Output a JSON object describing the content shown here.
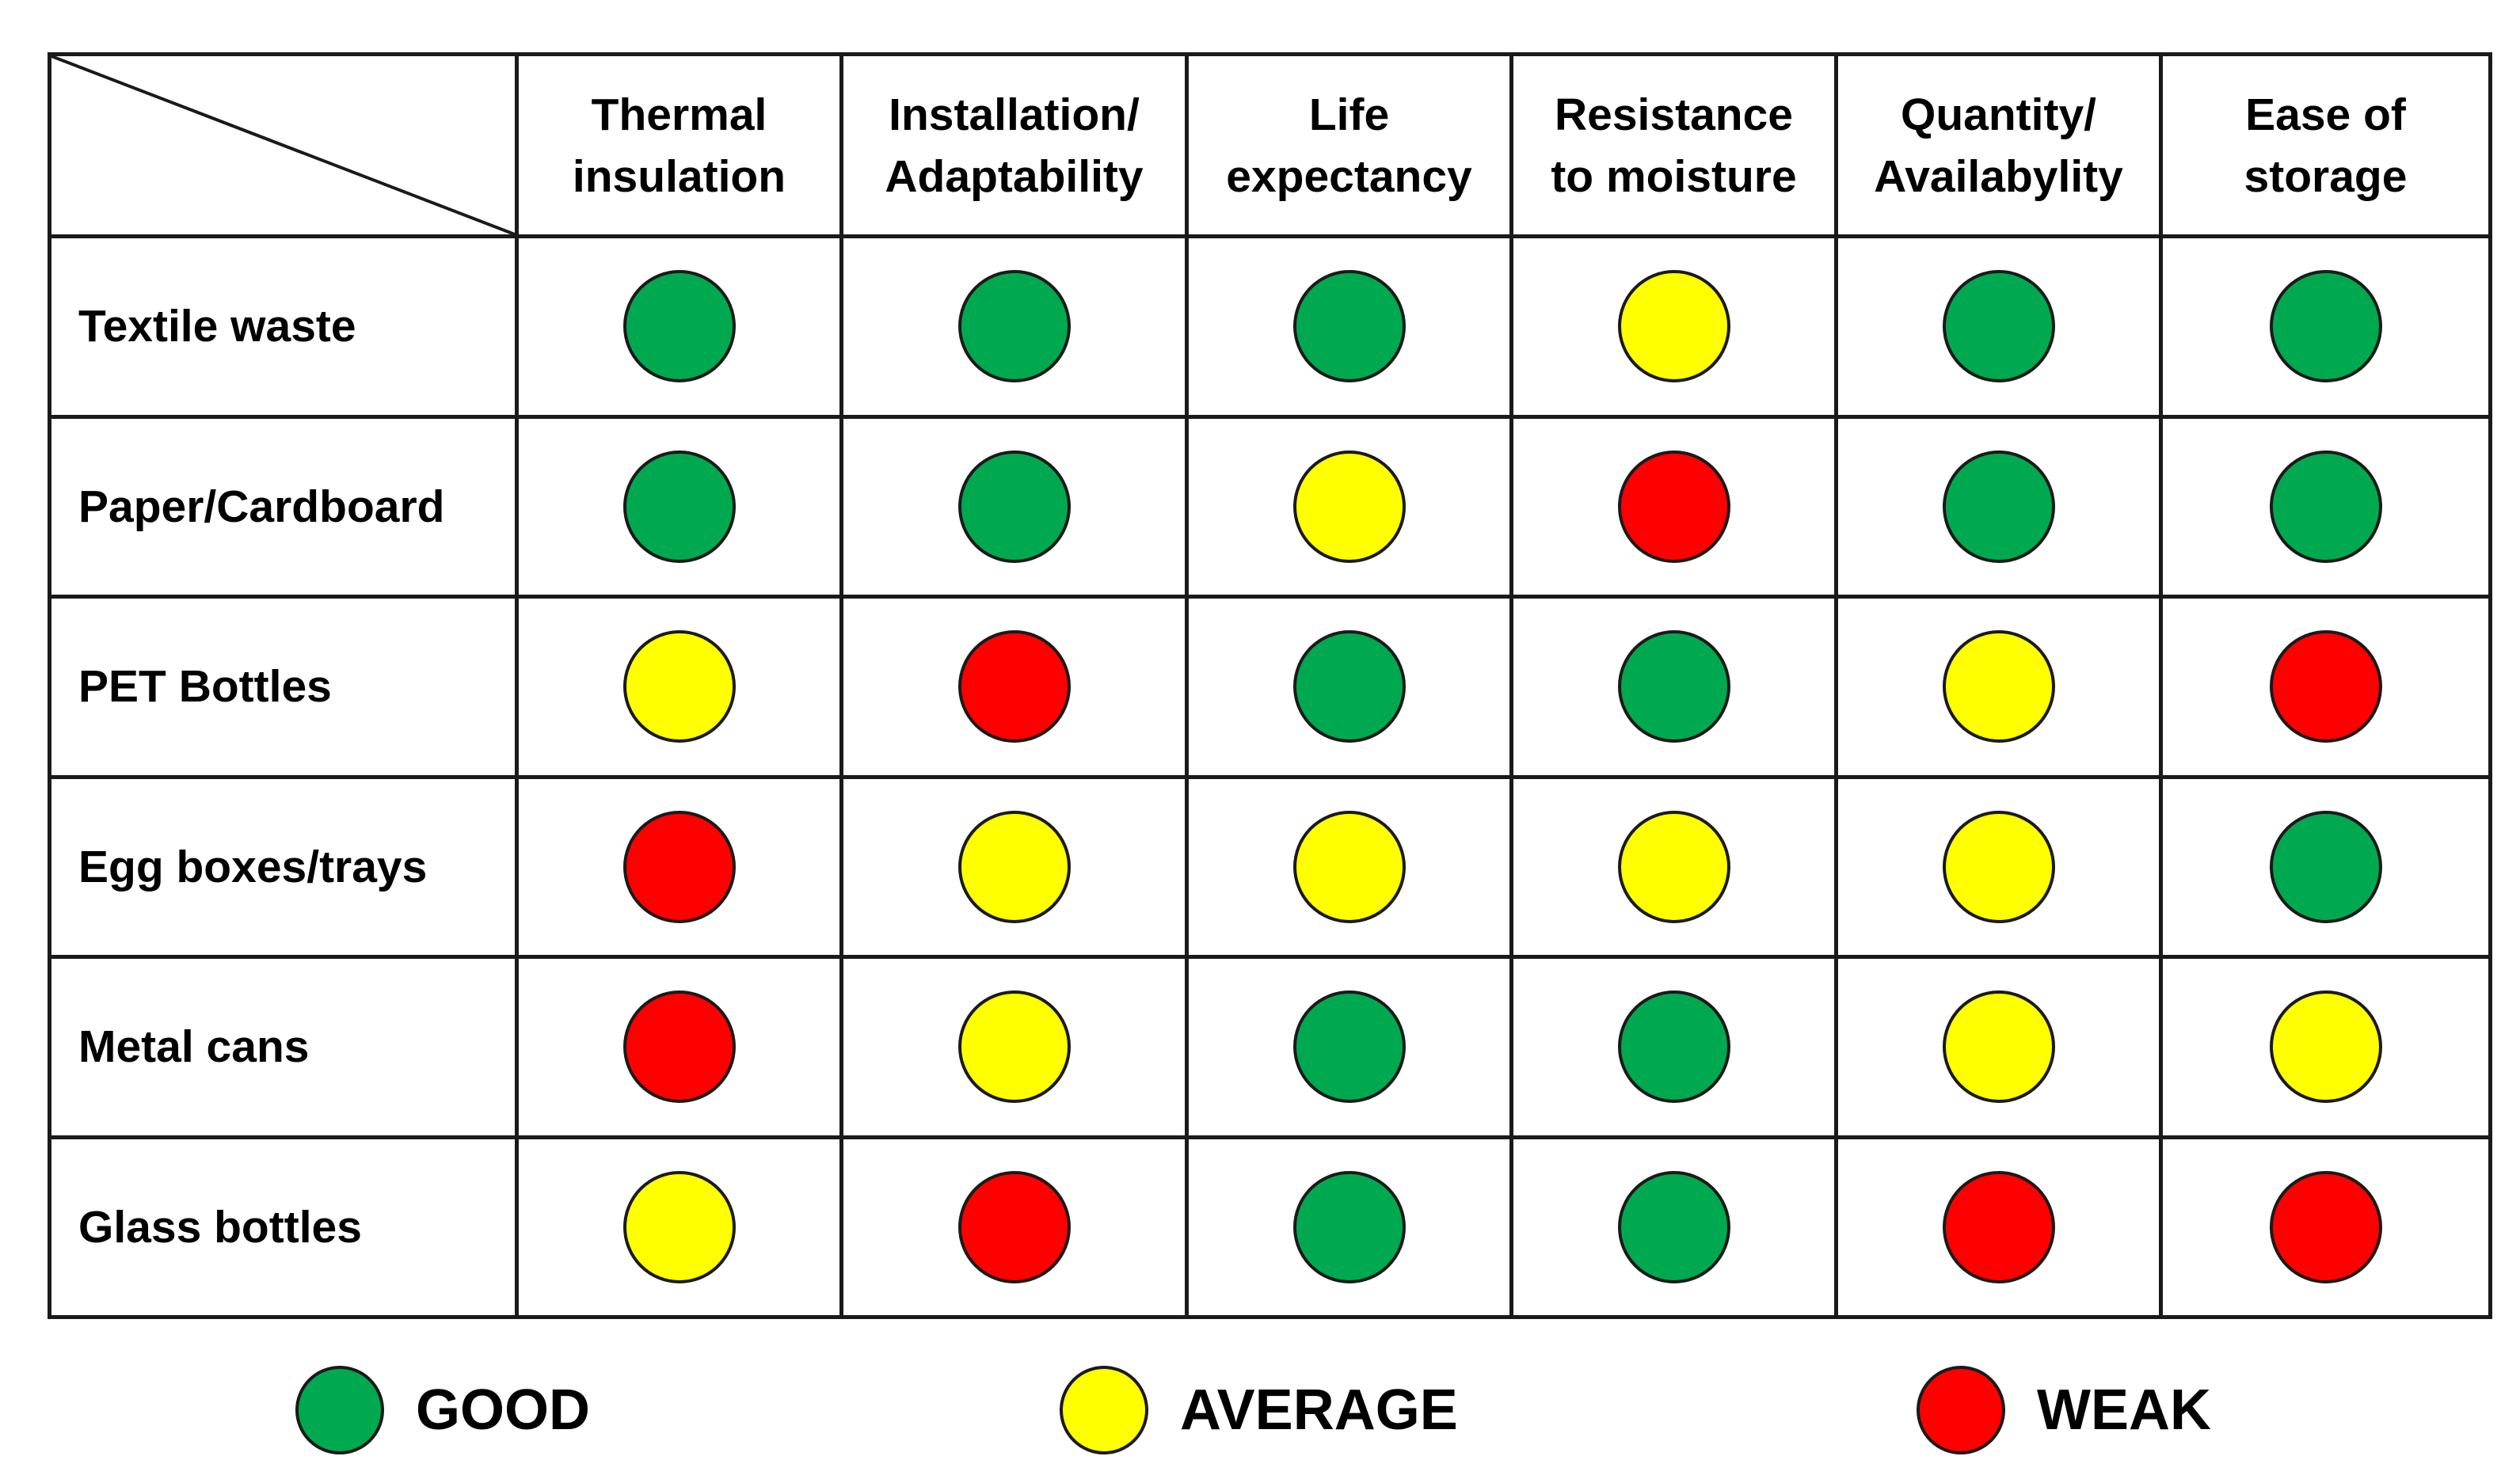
{
  "colors": {
    "GOOD": "#00a94f",
    "AVERAGE": "#ffff00",
    "WEAK": "#ff0000",
    "border": "#1a1a1a"
  },
  "columns": [
    [
      "Thermal",
      "insulation"
    ],
    [
      "Installation/",
      "Adaptability"
    ],
    [
      "Life",
      "expectancy"
    ],
    [
      "Resistance",
      "to moisture"
    ],
    [
      "Quantity/",
      "Availabylity"
    ],
    [
      "Ease of",
      "storage"
    ]
  ],
  "rows": [
    {
      "label": "Textile waste",
      "ratings": [
        "GOOD",
        "GOOD",
        "GOOD",
        "AVERAGE",
        "GOOD",
        "GOOD"
      ]
    },
    {
      "label": "Paper/Cardboard",
      "ratings": [
        "GOOD",
        "GOOD",
        "AVERAGE",
        "WEAK",
        "GOOD",
        "GOOD"
      ]
    },
    {
      "label": "PET Bottles",
      "ratings": [
        "AVERAGE",
        "WEAK",
        "GOOD",
        "GOOD",
        "AVERAGE",
        "WEAK"
      ]
    },
    {
      "label": "Egg boxes/trays",
      "ratings": [
        "WEAK",
        "AVERAGE",
        "AVERAGE",
        "AVERAGE",
        "AVERAGE",
        "GOOD"
      ]
    },
    {
      "label": "Metal cans",
      "ratings": [
        "WEAK",
        "AVERAGE",
        "GOOD",
        "GOOD",
        "AVERAGE",
        "AVERAGE"
      ]
    },
    {
      "label": "Glass bottles",
      "ratings": [
        "AVERAGE",
        "WEAK",
        "GOOD",
        "GOOD",
        "WEAK",
        "WEAK"
      ]
    }
  ],
  "legend": [
    {
      "key": "GOOD",
      "label": "GOOD"
    },
    {
      "key": "AVERAGE",
      "label": "AVERAGE"
    },
    {
      "key": "WEAK",
      "label": "WEAK"
    }
  ]
}
